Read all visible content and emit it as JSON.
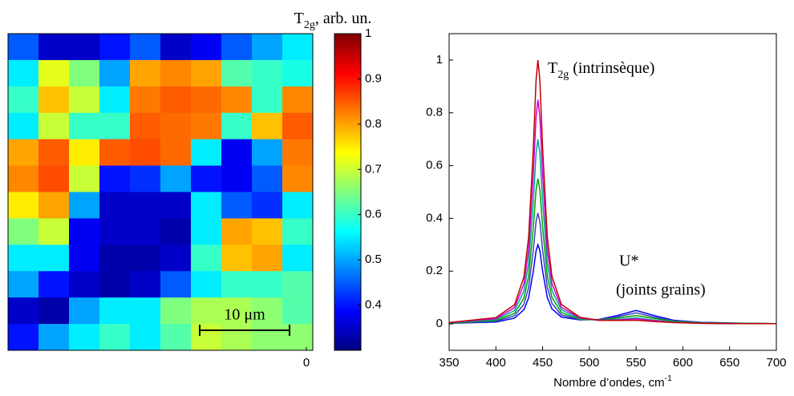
{
  "chart_data": [
    {
      "type": "heatmap",
      "colorbar_label": {
        "text": "T",
        "sub": "2g",
        "after": ", arb. un."
      },
      "clim": [
        0.3,
        1
      ],
      "cticks": [
        0.4,
        0.5,
        0.6,
        0.7,
        0.8,
        0.9,
        1
      ],
      "xticks": [
        0
      ],
      "annotation": "10 μm",
      "colormap": "jet",
      "values": [
        [
          0.45,
          0.35,
          0.35,
          0.4,
          0.45,
          0.35,
          0.38,
          0.45,
          0.5,
          0.55
        ],
        [
          0.55,
          0.72,
          0.65,
          0.5,
          0.8,
          0.82,
          0.8,
          0.62,
          0.6,
          0.58
        ],
        [
          0.6,
          0.78,
          0.7,
          0.55,
          0.83,
          0.85,
          0.84,
          0.82,
          0.6,
          0.82
        ],
        [
          0.55,
          0.7,
          0.6,
          0.6,
          0.85,
          0.84,
          0.83,
          0.6,
          0.78,
          0.85
        ],
        [
          0.8,
          0.85,
          0.75,
          0.85,
          0.86,
          0.84,
          0.55,
          0.38,
          0.5,
          0.83
        ],
        [
          0.82,
          0.86,
          0.7,
          0.4,
          0.42,
          0.5,
          0.4,
          0.38,
          0.45,
          0.82
        ],
        [
          0.75,
          0.8,
          0.5,
          0.35,
          0.35,
          0.35,
          0.55,
          0.45,
          0.42,
          0.55
        ],
        [
          0.65,
          0.7,
          0.38,
          0.35,
          0.35,
          0.33,
          0.55,
          0.8,
          0.78,
          0.6
        ],
        [
          0.55,
          0.55,
          0.38,
          0.33,
          0.33,
          0.35,
          0.6,
          0.78,
          0.8,
          0.55
        ],
        [
          0.5,
          0.4,
          0.35,
          0.33,
          0.35,
          0.45,
          0.55,
          0.6,
          0.6,
          0.62
        ],
        [
          0.35,
          0.33,
          0.5,
          0.55,
          0.55,
          0.65,
          0.68,
          0.68,
          0.66,
          0.62
        ],
        [
          0.4,
          0.5,
          0.55,
          0.6,
          0.55,
          0.62,
          0.7,
          0.68,
          0.66,
          0.66
        ]
      ]
    },
    {
      "type": "line",
      "xlabel": {
        "text": "Nombre d’ondes, cm",
        "sup": "-1"
      },
      "annotations": [
        {
          "text": "T",
          "sub": "2g",
          "after": " (intrinsèque)"
        },
        {
          "text": "U*"
        },
        {
          "text": "(joints grains)"
        }
      ],
      "xlim": [
        350,
        700
      ],
      "xticks": [
        350,
        400,
        450,
        500,
        550,
        600,
        650,
        700
      ],
      "ylim": [
        -0.1,
        1.1
      ],
      "yticks": [
        0,
        0.2,
        0.4,
        0.6,
        0.8,
        1
      ],
      "x": [
        350,
        400,
        420,
        430,
        435,
        440,
        443,
        445,
        447,
        450,
        455,
        460,
        470,
        490,
        510,
        530,
        550,
        570,
        590,
        620,
        660,
        700
      ],
      "series": [
        {
          "color": "#0000ff",
          "values": [
            0.002,
            0.007,
            0.022,
            0.054,
            0.099,
            0.199,
            0.277,
            0.3,
            0.278,
            0.2,
            0.1,
            0.057,
            0.026,
            0.015,
            0.017,
            0.032,
            0.051,
            0.031,
            0.014,
            0.006,
            0.003,
            0.001
          ]
        },
        {
          "color": "#4040c0",
          "values": [
            0.002,
            0.01,
            0.031,
            0.075,
            0.138,
            0.278,
            0.388,
            0.42,
            0.389,
            0.279,
            0.139,
            0.078,
            0.034,
            0.016,
            0.016,
            0.027,
            0.042,
            0.025,
            0.012,
            0.005,
            0.002,
            0.001
          ]
        },
        {
          "color": "#00a000",
          "values": [
            0.003,
            0.013,
            0.04,
            0.098,
            0.181,
            0.364,
            0.508,
            0.55,
            0.509,
            0.365,
            0.182,
            0.1,
            0.043,
            0.017,
            0.015,
            0.022,
            0.032,
            0.02,
            0.01,
            0.004,
            0.002,
            0.001
          ]
        },
        {
          "color": "#00a0a0",
          "values": [
            0.004,
            0.017,
            0.051,
            0.125,
            0.23,
            0.463,
            0.647,
            0.7,
            0.648,
            0.464,
            0.231,
            0.127,
            0.053,
            0.02,
            0.014,
            0.017,
            0.023,
            0.014,
            0.007,
            0.003,
            0.001,
            0.001
          ]
        },
        {
          "color": "#d000d0",
          "values": [
            0.005,
            0.02,
            0.062,
            0.152,
            0.28,
            0.563,
            0.785,
            0.85,
            0.786,
            0.564,
            0.281,
            0.153,
            0.063,
            0.022,
            0.014,
            0.015,
            0.019,
            0.012,
            0.006,
            0.002,
            0.001,
            0.001
          ]
        },
        {
          "color": "#c00000",
          "values": [
            0.005,
            0.024,
            0.073,
            0.179,
            0.329,
            0.662,
            0.924,
            1.0,
            0.925,
            0.663,
            0.33,
            0.18,
            0.074,
            0.025,
            0.014,
            0.013,
            0.014,
            0.009,
            0.005,
            0.002,
            0.001,
            0.001
          ]
        }
      ]
    }
  ]
}
